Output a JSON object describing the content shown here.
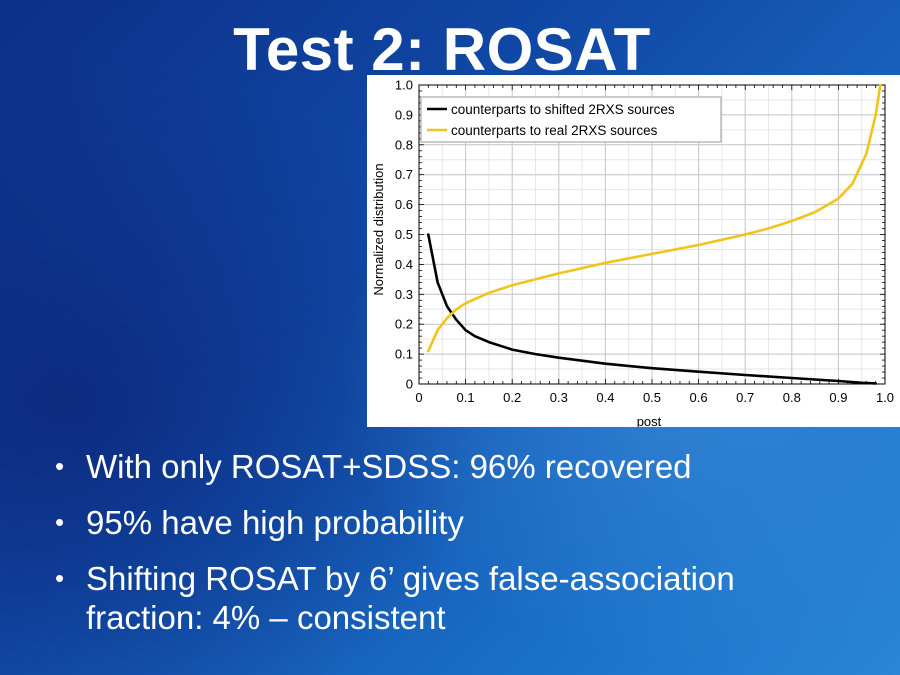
{
  "slide": {
    "title": "Test 2: ROSAT"
  },
  "bullets": [
    "With only ROSAT+SDSS: 96% recovered",
    "95% have high probability",
    "Shifting ROSAT by 6’ gives false-association fraction: 4% – consistent"
  ],
  "chart_data": {
    "type": "line",
    "xlabel": "post",
    "ylabel": "Normalized distribution",
    "xlim": [
      0,
      1
    ],
    "ylim": [
      0,
      1
    ],
    "x_ticks": [
      "0",
      "0.1",
      "0.2",
      "0.3",
      "0.4",
      "0.5",
      "0.6",
      "0.7",
      "0.8",
      "0.9",
      "1.0"
    ],
    "y_ticks": [
      "0",
      "0.1",
      "0.2",
      "0.3",
      "0.4",
      "0.5",
      "0.6",
      "0.7",
      "0.8",
      "0.9",
      "1.0"
    ],
    "grid": true,
    "legend_position": "top-left",
    "series": [
      {
        "name": "counterparts to shifted 2RXS sources",
        "color": "#000000",
        "x": [
          0.02,
          0.04,
          0.06,
          0.08,
          0.1,
          0.12,
          0.15,
          0.2,
          0.25,
          0.3,
          0.4,
          0.5,
          0.6,
          0.7,
          0.8,
          0.9,
          0.95,
          0.98
        ],
        "y": [
          0.5,
          0.34,
          0.26,
          0.215,
          0.18,
          0.16,
          0.14,
          0.115,
          0.1,
          0.088,
          0.068,
          0.053,
          0.041,
          0.03,
          0.02,
          0.01,
          0.004,
          0.002
        ]
      },
      {
        "name": "counterparts to real 2RXS sources",
        "color": "#f0c419",
        "x": [
          0.02,
          0.04,
          0.06,
          0.08,
          0.1,
          0.15,
          0.2,
          0.3,
          0.4,
          0.5,
          0.6,
          0.7,
          0.75,
          0.8,
          0.85,
          0.9,
          0.93,
          0.96,
          0.98,
          0.99
        ],
        "y": [
          0.11,
          0.18,
          0.22,
          0.25,
          0.27,
          0.305,
          0.33,
          0.37,
          0.405,
          0.435,
          0.465,
          0.5,
          0.52,
          0.545,
          0.575,
          0.62,
          0.67,
          0.77,
          0.9,
          1.0
        ]
      }
    ]
  }
}
